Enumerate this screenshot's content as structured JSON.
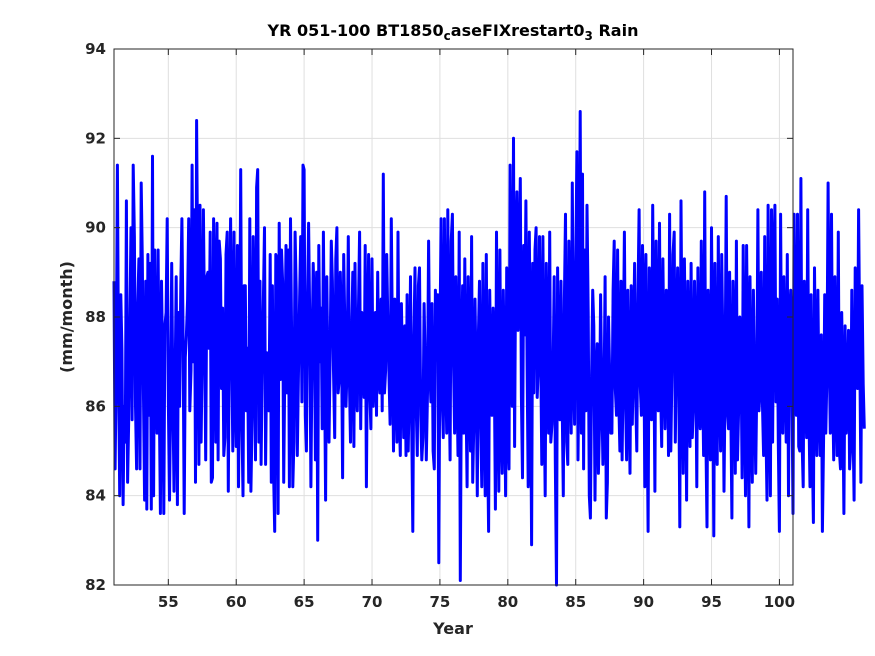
{
  "chart_data": {
    "type": "line",
    "title": {
      "parts": [
        {
          "text": "YR 051-100 BT1850",
          "sub": false
        },
        {
          "text": "c",
          "sub": true
        },
        {
          "text": "aseFIXrestart0",
          "sub": false
        },
        {
          "text": "3",
          "sub": true
        },
        {
          "text": " Rain",
          "sub": false
        }
      ]
    },
    "xlabel": "Year",
    "ylabel": "(mm/month)",
    "xlim": [
      51,
      101
    ],
    "ylim": [
      82,
      94
    ],
    "xticks": [
      55,
      60,
      65,
      70,
      75,
      80,
      85,
      90,
      95,
      100
    ],
    "yticks": [
      82,
      84,
      86,
      88,
      90,
      92,
      94
    ],
    "grid": true,
    "series": [
      {
        "color": "#0000ff",
        "x_start": 51.0,
        "x_step": 0.0833333,
        "values": [
          88.8,
          84.6,
          86.9,
          91.4,
          87.0,
          84.0,
          88.5,
          87.3,
          83.8,
          86.0,
          85.2,
          90.6,
          84.3,
          85.7,
          87.8,
          90.0,
          85.7,
          91.4,
          89.8,
          86.0,
          84.6,
          88.3,
          89.3,
          84.6,
          91.0,
          89.3,
          86.4,
          83.9,
          88.8,
          83.7,
          89.4,
          85.8,
          89.2,
          83.7,
          91.6,
          84.0,
          89.5,
          86.5,
          85.4,
          89.5,
          86.1,
          83.6,
          88.8,
          86.9,
          83.6,
          87.8,
          88.1,
          90.2,
          86.2,
          83.9,
          86.1,
          89.2,
          86.4,
          84.1,
          86.5,
          88.9,
          83.8,
          88.1,
          86.0,
          88.7,
          90.2,
          87.8,
          83.6,
          87.1,
          87.6,
          88.4,
          90.2,
          85.9,
          86.8,
          91.4,
          87.0,
          90.4,
          84.3,
          92.4,
          89.0,
          84.7,
          90.5,
          85.2,
          87.3,
          90.4,
          87.9,
          84.8,
          88.9,
          89.0,
          87.3,
          89.9,
          84.3,
          84.4,
          90.2,
          88.6,
          85.2,
          90.1,
          84.8,
          89.7,
          89.3,
          86.4,
          88.2,
          84.9,
          85.3,
          89.4,
          89.9,
          84.1,
          87.7,
          90.2,
          87.4,
          85.0,
          89.9,
          86.4,
          85.1,
          89.6,
          84.2,
          86.7,
          91.3,
          85.7,
          84.0,
          88.7,
          88.7,
          85.9,
          87.3,
          84.3,
          90.2,
          84.1,
          85.7,
          89.8,
          87.8,
          84.8,
          90.9,
          91.3,
          85.2,
          88.8,
          84.7,
          86.8,
          88.4,
          90.0,
          84.7,
          87.2,
          87.0,
          85.9,
          89.4,
          84.3,
          88.7,
          84.5,
          83.2,
          89.4,
          89.3,
          83.6,
          90.1,
          86.6,
          89.5,
          88.8,
          84.3,
          87.1,
          89.6,
          86.3,
          89.5,
          84.2,
          90.2,
          87.4,
          84.2,
          85.2,
          89.9,
          88.6,
          84.9,
          86.8,
          88.4,
          89.8,
          86.1,
          91.4,
          91.3,
          85.8,
          85.0,
          88.2,
          90.1,
          87.8,
          84.2,
          87.1,
          89.2,
          88.2,
          84.8,
          89.0,
          83.0,
          89.6,
          87.0,
          88.2,
          85.5,
          89.9,
          86.9,
          83.9,
          88.9,
          86.7,
          85.2,
          87.1,
          89.7,
          88.8,
          86.8,
          85.3,
          89.3,
          90.0,
          86.3,
          86.6,
          89.0,
          87.6,
          84.4,
          89.4,
          87.7,
          86.0,
          86.9,
          89.8,
          86.6,
          85.2,
          87.5,
          89.0,
          85.1,
          89.2,
          86.6,
          85.9,
          88.1,
          89.9,
          85.5,
          88.1,
          87.2,
          86.2,
          89.6,
          84.2,
          87.5,
          89.4,
          86.3,
          85.5,
          89.3,
          86.0,
          86.8,
          88.1,
          85.8,
          89.0,
          86.7,
          86.3,
          88.4,
          85.9,
          91.2,
          86.3,
          86.8,
          89.4,
          87.8,
          86.7,
          85.6,
          90.2,
          87.5,
          85.0,
          88.4,
          86.6,
          85.2,
          89.9,
          85.9,
          84.9,
          88.3,
          86.7,
          85.3,
          87.8,
          84.9,
          88.5,
          85.0,
          86.6,
          88.9,
          85.8,
          83.2,
          87.5,
          89.1,
          86.0,
          84.9,
          88.7,
          89.1,
          85.8,
          84.8,
          85.3,
          88.3,
          86.9,
          84.8,
          86.3,
          89.7,
          86.9,
          86.1,
          88.3,
          85.0,
          84.6,
          88.6,
          87.6,
          88.5,
          82.5,
          87.4,
          90.2,
          86.2,
          85.3,
          90.2,
          87.0,
          85.4,
          90.4,
          86.7,
          84.8,
          89.7,
          90.3,
          87.0,
          85.4,
          88.9,
          86.7,
          84.9,
          89.9,
          82.1,
          86.7,
          88.7,
          85.4,
          89.3,
          86.4,
          84.2,
          88.9,
          86.9,
          85.0,
          89.8,
          84.3,
          85.7,
          88.4,
          86.7,
          84.0,
          87.6,
          88.8,
          85.6,
          84.2,
          89.2,
          86.1,
          84.0,
          89.4,
          85.5,
          83.2,
          88.6,
          86.8,
          85.8,
          88.2,
          87.1,
          83.7,
          89.9,
          86.5,
          84.1,
          89.5,
          85.7,
          84.5,
          88.6,
          86.6,
          84.0,
          89.1,
          85.3,
          84.6,
          91.4,
          87.2,
          86.0,
          92.0,
          85.1,
          89.4,
          90.8,
          87.7,
          88.9,
          91.1,
          86.2,
          84.4,
          89.6,
          87.6,
          90.6,
          86.9,
          84.2,
          89.9,
          87.0,
          82.9,
          89.2,
          86.3,
          89.5,
          90.0,
          86.2,
          87.0,
          89.8,
          87.4,
          84.7,
          89.8,
          86.4,
          84.0,
          89.2,
          86.9,
          85.4,
          89.9,
          85.2,
          85.6,
          86.8,
          88.9,
          84.8,
          82.0,
          89.1,
          86.7,
          85.7,
          88.8,
          86.2,
          84.0,
          88.4,
          90.3,
          85.2,
          84.7,
          89.7,
          87.0,
          85.4,
          91.0,
          86.8,
          85.6,
          89.0,
          91.7,
          84.8,
          87.3,
          92.6,
          85.4,
          91.2,
          84.6,
          89.5,
          85.9,
          90.5,
          88.1,
          84.0,
          83.5,
          86.7,
          88.6,
          87.8,
          83.9,
          86.6,
          87.4,
          84.5,
          85.6,
          88.5,
          86.5,
          84.7,
          86.1,
          88.9,
          83.5,
          84.3,
          88.0,
          86.7,
          85.4,
          85.4,
          88.6,
          89.7,
          86.4,
          85.8,
          89.5,
          86.2,
          85.0,
          88.8,
          84.8,
          86.9,
          89.9,
          86.2,
          84.8,
          88.6,
          86.4,
          84.5,
          88.7,
          85.6,
          87.2,
          89.2,
          86.2,
          85.0,
          88.5,
          90.4,
          86.5,
          85.8,
          89.6,
          88.3,
          84.2,
          89.4,
          86.2,
          83.2,
          89.1,
          86.4,
          85.7,
          90.5,
          87.3,
          84.1,
          89.7,
          86.9,
          85.9,
          90.1,
          86.4,
          85.1,
          89.3,
          86.9,
          85.5,
          88.6,
          87.9,
          84.9,
          90.3,
          85.0,
          86.7,
          89.4,
          89.9,
          85.2,
          87.1,
          89.1,
          86.9,
          83.3,
          90.6,
          87.1,
          84.5,
          89.3,
          87.0,
          83.9,
          88.8,
          86.8,
          85.1,
          89.2,
          85.3,
          86.0,
          88.8,
          87.2,
          84.2,
          89.1,
          86.3,
          85.5,
          89.7,
          86.8,
          84.9,
          90.8,
          85.3,
          83.3,
          88.6,
          87.1,
          84.8,
          90.0,
          86.8,
          83.1,
          89.2,
          85.4,
          84.7,
          89.8,
          86.5,
          85.0,
          89.4,
          87.5,
          84.1,
          86.6,
          90.7,
          85.9,
          85.5,
          89.0,
          86.0,
          83.5,
          88.8,
          87.3,
          84.5,
          89.7,
          84.8,
          86.0,
          88.0,
          87.5,
          84.4,
          89.6,
          86.6,
          84.0,
          89.6,
          87.1,
          83.3,
          88.9,
          86.2,
          84.3,
          88.6,
          86.6,
          84.5,
          86.5,
          90.4,
          85.9,
          86.5,
          89.0,
          86.1,
          84.9,
          89.8,
          85.7,
          83.9,
          90.5,
          86.3,
          84.0,
          90.4,
          85.2,
          89.2,
          90.5,
          86.1,
          88.4,
          85.2,
          83.2,
          90.3,
          86.2,
          85.4,
          88.9,
          86.8,
          85.2,
          89.4,
          84.0,
          88.0,
          88.6,
          86.5,
          83.6,
          90.3,
          86.6,
          85.8,
          90.3,
          85.1,
          85.0,
          91.1,
          85.2,
          84.2,
          88.8,
          86.7,
          85.3,
          90.4,
          86.0,
          84.2,
          88.5,
          85.2,
          83.4,
          89.1,
          86.7,
          84.9,
          88.6,
          86.1,
          84.9,
          87.6,
          83.2,
          85.3,
          88.5,
          85.4,
          86.7,
          91.0,
          87.2,
          85.4,
          90.3,
          86.5,
          84.8,
          88.9,
          86.2,
          84.9,
          89.9,
          85.0,
          84.6,
          88.1,
          86.4,
          83.6,
          87.8,
          85.4,
          86.1,
          87.7,
          84.6,
          85.1,
          88.6,
          85.6,
          83.9,
          89.1,
          87.0,
          86.4,
          90.4,
          87.2,
          84.3,
          88.7,
          86.5,
          85.5
        ]
      }
    ]
  }
}
